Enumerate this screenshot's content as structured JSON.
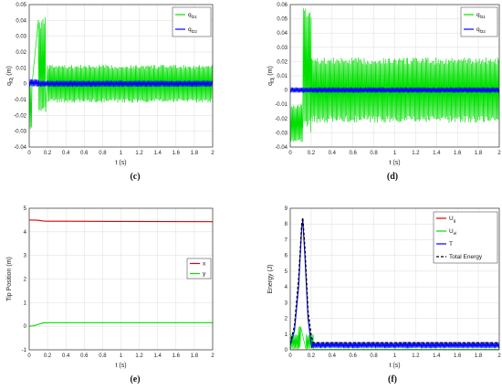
{
  "chart_data": [
    {
      "type": "line",
      "caption": "(c)",
      "xlabel": "t (s)",
      "ylabel": "q",
      "ylabel_sub": "f2j",
      "ylabel_unit": "(m)",
      "xlim": [
        0,
        2
      ],
      "ylim": [
        -0.04,
        0.05
      ],
      "xticks": [
        "0",
        "0.2",
        "0.4",
        "0.6",
        "0.8",
        "1",
        "1.2",
        "1.4",
        "1.6",
        "1.8",
        "2"
      ],
      "yticks": [
        "-0.04",
        "-0.03",
        "-0.02",
        "-0.01",
        "0",
        "0.01",
        "0.02",
        "0.03",
        "0.04",
        "0.05"
      ],
      "grid": true,
      "legend_position": "top-right",
      "series": [
        {
          "name": "q",
          "name_sub": "f21",
          "color": "#00e000",
          "style": "oscillation",
          "segments": [
            [
              0,
              0.03,
              -0.03,
              0.0
            ],
            [
              0.1,
              0.18,
              0.042,
              -0.02
            ],
            [
              0.2,
              2.0,
              0.012,
              -0.012
            ]
          ]
        },
        {
          "name": "q",
          "name_sub": "f22",
          "color": "#0000ff",
          "style": "oscillation",
          "segments": [
            [
              0,
              0.1,
              0.003,
              -0.002
            ],
            [
              0.1,
              2.0,
              0.002,
              -0.002
            ]
          ]
        }
      ]
    },
    {
      "type": "line",
      "caption": "(d)",
      "xlabel": "t (s)",
      "ylabel": "q",
      "ylabel_sub": "f3j",
      "ylabel_unit": "(m)",
      "xlim": [
        0,
        2
      ],
      "ylim": [
        -0.04,
        0.06
      ],
      "xticks": [
        "0",
        "0.2",
        "0.4",
        "0.6",
        "0.8",
        "1",
        "1.2",
        "1.4",
        "1.6",
        "1.8",
        "2"
      ],
      "yticks": [
        "-0.04",
        "-0.03",
        "-0.02",
        "-0.01",
        "0",
        "0.01",
        "0.02",
        "0.03",
        "0.04",
        "0.05",
        "0.06"
      ],
      "grid": true,
      "legend_position": "top-right",
      "series": [
        {
          "name": "q",
          "name_sub": "f31",
          "color": "#00e000",
          "style": "oscillation",
          "segments": [
            [
              0,
              0.12,
              -0.01,
              -0.037
            ],
            [
              0.12,
              0.2,
              0.058,
              -0.03
            ],
            [
              0.2,
              2.0,
              0.023,
              -0.023
            ]
          ]
        },
        {
          "name": "q",
          "name_sub": "f32",
          "color": "#0000ff",
          "style": "oscillation",
          "segments": [
            [
              0,
              2.0,
              0.002,
              -0.002
            ]
          ]
        }
      ]
    },
    {
      "type": "line",
      "caption": "(e)",
      "xlabel": "t (s)",
      "ylabel": "Tip Position (m)",
      "xlim": [
        0,
        2
      ],
      "ylim": [
        -1,
        5
      ],
      "xticks": [
        "0",
        "0.2",
        "0.4",
        "0.6",
        "0.8",
        "1",
        "1.2",
        "1.4",
        "1.6",
        "1.8",
        "2"
      ],
      "yticks": [
        "-1",
        "0",
        "1",
        "2",
        "3",
        "4",
        "5"
      ],
      "grid": true,
      "legend_position": "middle-right",
      "series": [
        {
          "name": "x",
          "color": "#e00000",
          "style": "line",
          "x": [
            0,
            0.05,
            0.1,
            0.15,
            0.2,
            0.4,
            1.0,
            2.0
          ],
          "y": [
            4.5,
            4.5,
            4.49,
            4.46,
            4.45,
            4.45,
            4.44,
            4.43
          ]
        },
        {
          "name": "y",
          "color": "#00e000",
          "style": "line",
          "x": [
            0,
            0.05,
            0.1,
            0.15,
            0.2,
            0.4,
            1.0,
            2.0
          ],
          "y": [
            0.0,
            0.02,
            0.08,
            0.14,
            0.15,
            0.15,
            0.15,
            0.15
          ]
        }
      ]
    },
    {
      "type": "line",
      "caption": "(f)",
      "xlabel": "t (s)",
      "ylabel": "Energy (J)",
      "xlim": [
        0,
        2
      ],
      "ylim": [
        0,
        9
      ],
      "xticks": [
        "0",
        "0.2",
        "0.4",
        "0.6",
        "0.8",
        "1",
        "1.2",
        "1.4",
        "1.6",
        "1.8",
        "2"
      ],
      "yticks": [
        "0",
        "1",
        "2",
        "3",
        "4",
        "5",
        "6",
        "7",
        "8",
        "9"
      ],
      "grid": true,
      "legend_position": "top-right",
      "series": [
        {
          "name": "U",
          "name_sub": "g",
          "color": "#e00000",
          "style": "line",
          "x": [
            0,
            2
          ],
          "y": [
            0,
            0
          ]
        },
        {
          "name": "U",
          "name_sub": "el",
          "color": "#00e000",
          "style": "oscillation",
          "segments": [
            [
              0,
              0.08,
              1.0,
              0.0
            ],
            [
              0.08,
              0.1,
              1.6,
              0.0
            ],
            [
              0.15,
              0.22,
              1.0,
              0.0
            ],
            [
              0.22,
              2.0,
              0.05,
              0.0
            ]
          ]
        },
        {
          "name": "T",
          "color": "#0000ff",
          "style": "oscillation",
          "segments": [
            [
              0.2,
              2.0,
              0.5,
              0.1
            ]
          ],
          "x": [
            0,
            0.04,
            0.08,
            0.11,
            0.12,
            0.14,
            0.17,
            0.2
          ],
          "y": [
            0.3,
            1.2,
            4.0,
            7.8,
            8.2,
            6.0,
            2.0,
            0.4
          ]
        },
        {
          "name": "Total Energy",
          "color": "#000000",
          "style": "dashed",
          "x": [
            0,
            0.04,
            0.08,
            0.11,
            0.12,
            0.14,
            0.17,
            0.2,
            0.22,
            2.0
          ],
          "y": [
            0.4,
            1.5,
            4.5,
            8.0,
            8.4,
            6.5,
            2.5,
            0.9,
            0.45,
            0.45
          ]
        }
      ]
    }
  ]
}
